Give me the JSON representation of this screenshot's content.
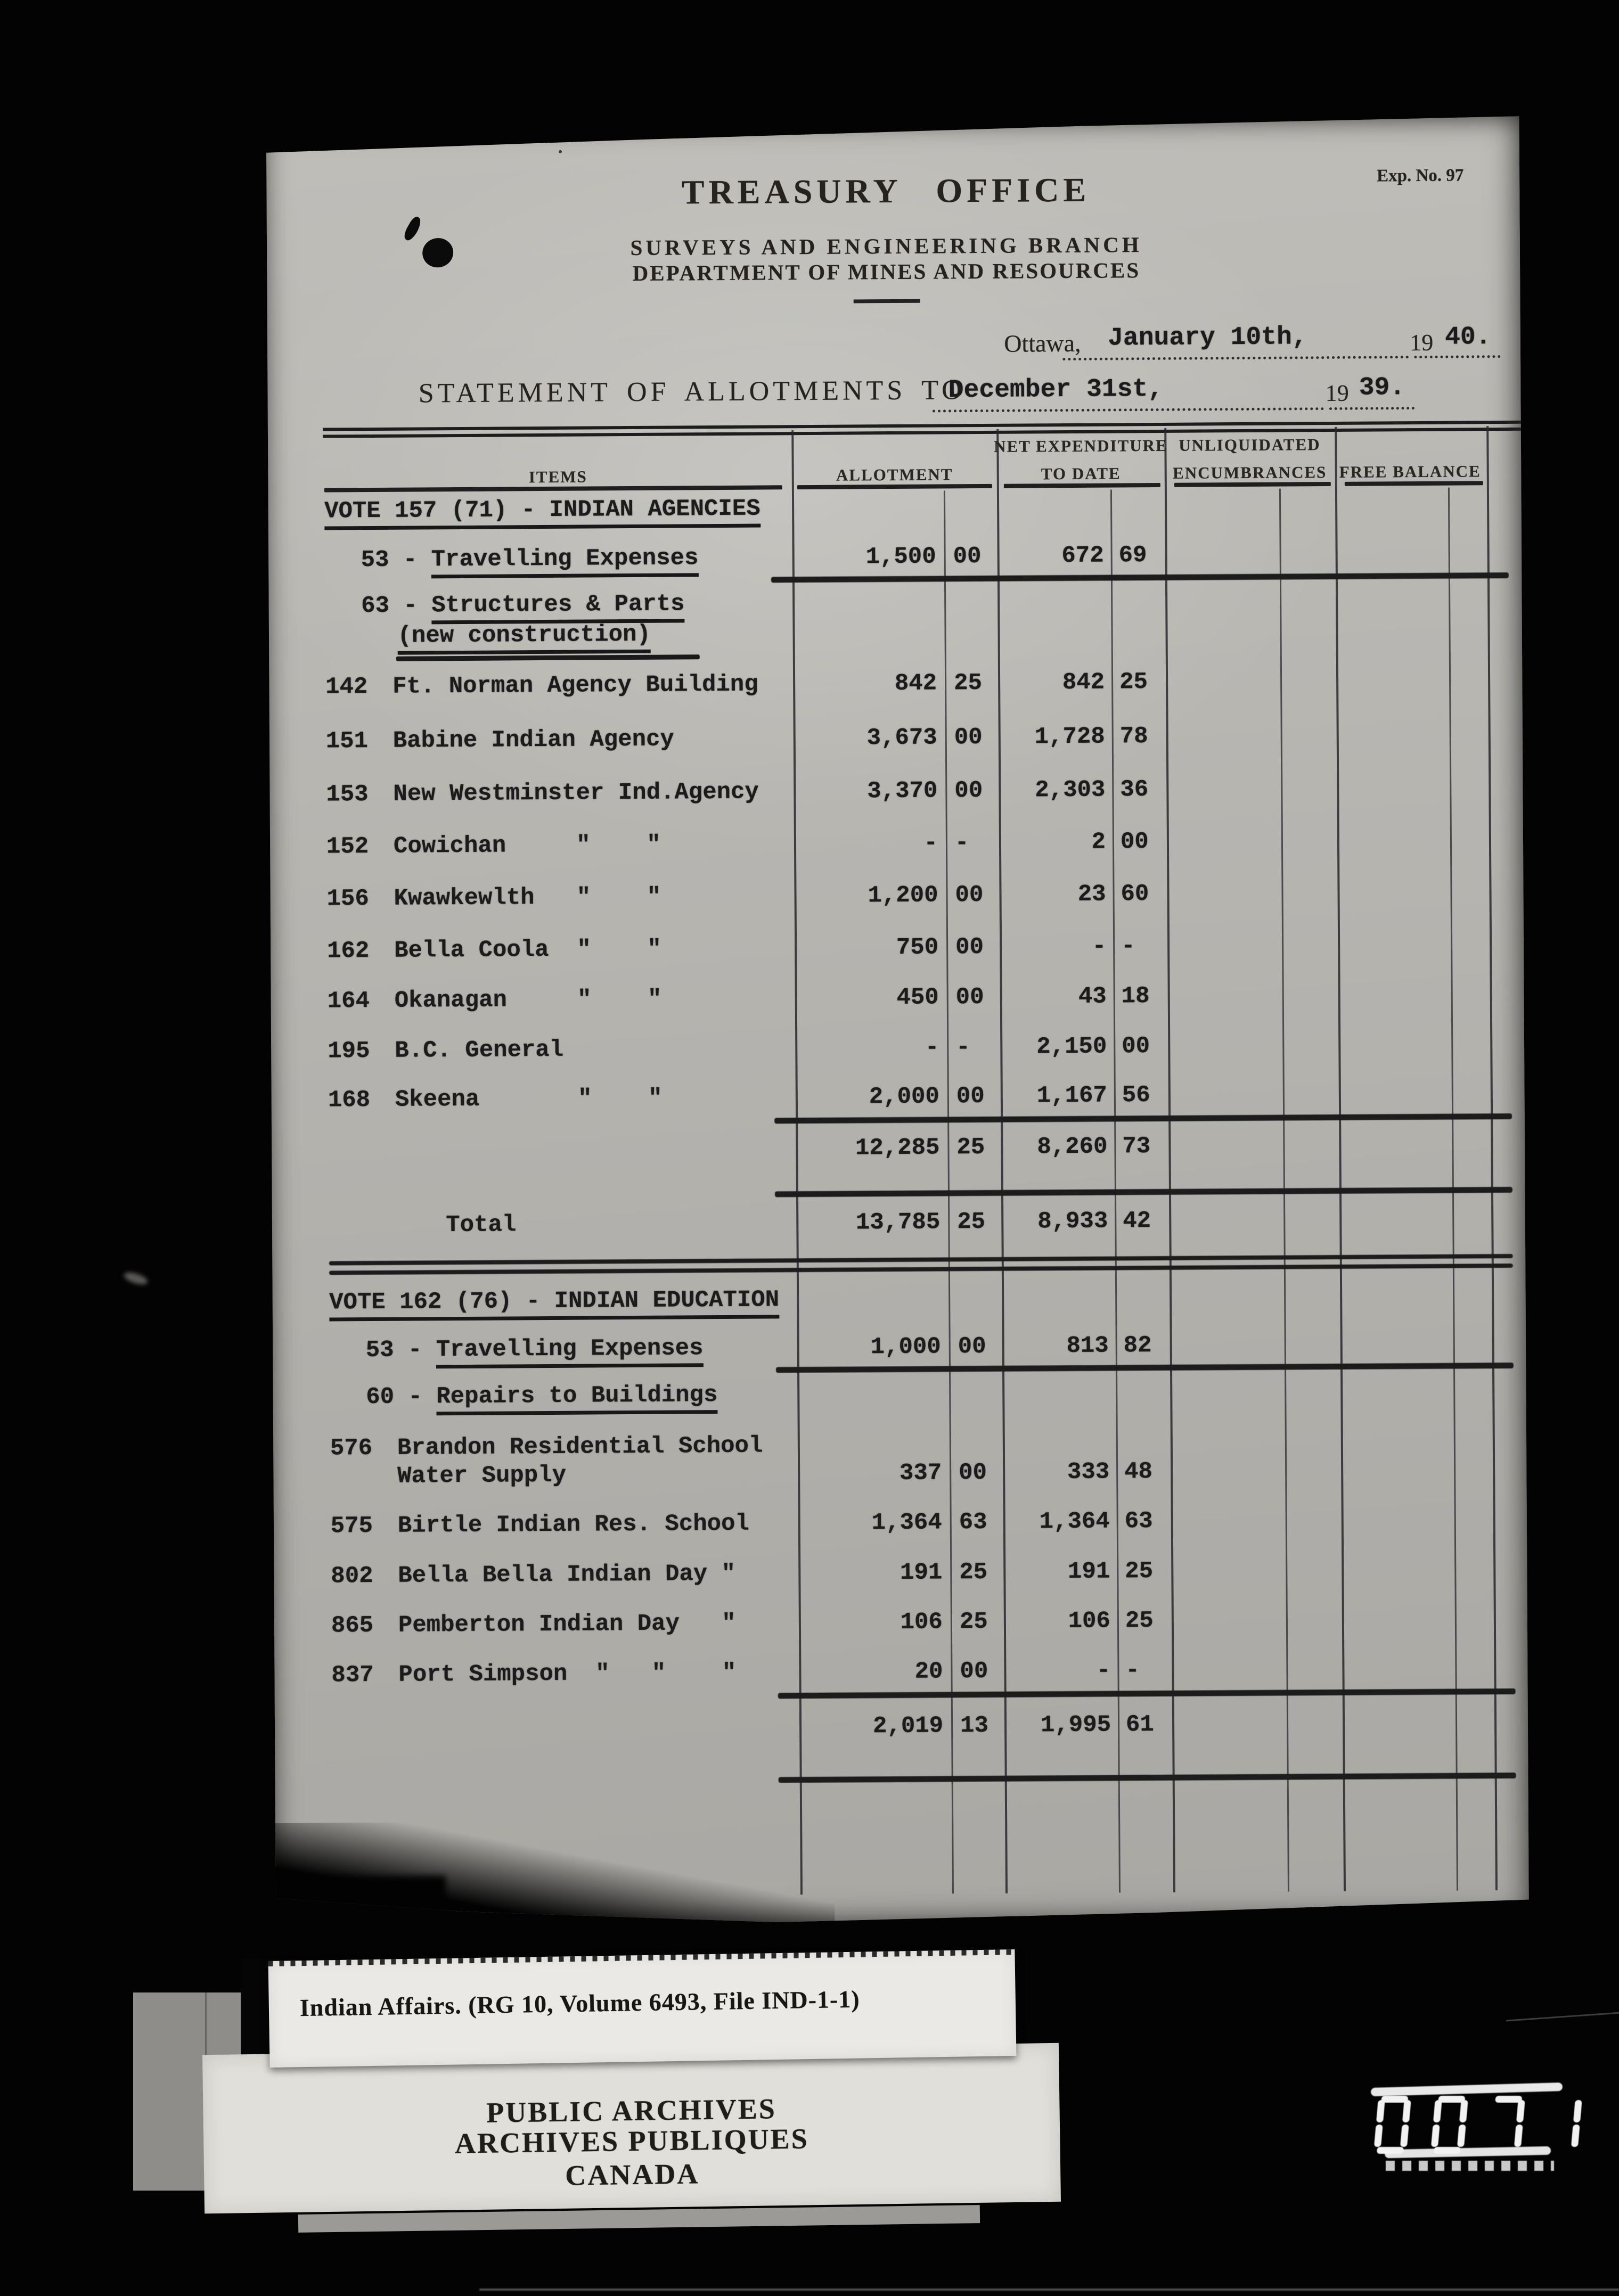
{
  "header": {
    "exp_no": "Exp. No. 97",
    "office": "TREASURY OFFICE",
    "branch": "SURVEYS AND ENGINEERING BRANCH",
    "department": "DEPARTMENT OF MINES AND RESOURCES",
    "place": "Ottawa,",
    "date_typed": "January 10th,",
    "year_printed": "19",
    "year_typed": "40.",
    "statement_label": "STATEMENT OF ALLOTMENTS TO",
    "statement_date_typed": "December 31st,",
    "statement_year_printed": "19",
    "statement_year_typed": "39."
  },
  "table": {
    "headers": [
      [
        "ITEMS"
      ],
      [
        "ALLOTMENT"
      ],
      [
        "NET EXPENDITURE",
        "TO DATE"
      ],
      [
        "UNLIQUIDATED",
        "ENCUMBRANCES"
      ],
      [
        "FREE BALANCE"
      ]
    ],
    "rows": [
      {
        "t": "vote",
        "text": "VOTE 157 (71) - INDIAN AGENCIES"
      },
      {
        "t": "sub",
        "prefix": "53 - ",
        "text": "Travelling Expenses",
        "allot": [
          "1,500",
          "00"
        ],
        "net": [
          "672",
          "69"
        ]
      },
      {
        "t": "rule"
      },
      {
        "t": "sub2",
        "prefix": "63 - ",
        "line1": "Structures & Parts",
        "line2": "(new construction)"
      },
      {
        "t": "item",
        "code": "142",
        "name": "Ft. Norman Agency Building",
        "allot": [
          "842",
          "25"
        ],
        "net": [
          "842",
          "25"
        ]
      },
      {
        "t": "item",
        "code": "151",
        "name": "Babine Indian Agency",
        "allot": [
          "3,673",
          "00"
        ],
        "net": [
          "1,728",
          "78"
        ]
      },
      {
        "t": "item",
        "code": "153",
        "name": "New Westminster Ind.Agency",
        "allot": [
          "3,370",
          "00"
        ],
        "net": [
          "2,303",
          "36"
        ]
      },
      {
        "t": "item",
        "code": "152",
        "name": "Cowichan     \"    \"",
        "allot": [
          "-",
          "-"
        ],
        "net": [
          "2",
          "00"
        ]
      },
      {
        "t": "item",
        "code": "156",
        "name": "Kwawkewlth   \"    \"",
        "allot": [
          "1,200",
          "00"
        ],
        "net": [
          "23",
          "60"
        ]
      },
      {
        "t": "item",
        "code": "162",
        "name": "Bella Coola  \"    \"",
        "allot": [
          "750",
          "00"
        ],
        "net": [
          "-",
          "-"
        ]
      },
      {
        "t": "item",
        "code": "164",
        "name": "Okanagan     \"    \"",
        "allot": [
          "450",
          "00"
        ],
        "net": [
          "43",
          "18"
        ]
      },
      {
        "t": "item",
        "code": "195",
        "name": "B.C. General",
        "allot": [
          "-",
          "-"
        ],
        "net": [
          "2,150",
          "00"
        ]
      },
      {
        "t": "item",
        "code": "168",
        "name": "Skeena       \"    \"",
        "allot": [
          "2,000",
          "00"
        ],
        "net": [
          "1,167",
          "56"
        ]
      },
      {
        "t": "rule"
      },
      {
        "t": "sum",
        "allot": [
          "12,285",
          "25"
        ],
        "net": [
          "8,260",
          "73"
        ]
      },
      {
        "t": "rule"
      },
      {
        "t": "total",
        "label": "Total",
        "allot": [
          "13,785",
          "25"
        ],
        "net": [
          "8,933",
          "42"
        ]
      },
      {
        "t": "drule"
      },
      {
        "t": "vote",
        "text": "VOTE 162 (76) - INDIAN EDUCATION"
      },
      {
        "t": "sub",
        "prefix": "53 - ",
        "text": "Travelling Expenses",
        "allot": [
          "1,000",
          "00"
        ],
        "net": [
          "813",
          "82"
        ]
      },
      {
        "t": "rule"
      },
      {
        "t": "subp",
        "prefix": "60 - ",
        "text": "Repairs to Buildings"
      },
      {
        "t": "item2",
        "code": "576",
        "line1": "Brandon Residential School",
        "line2": "Water Supply",
        "allot": [
          "337",
          "00"
        ],
        "net": [
          "333",
          "48"
        ]
      },
      {
        "t": "item",
        "code": "575",
        "name": "Birtle Indian Res. School",
        "allot": [
          "1,364",
          "63"
        ],
        "net": [
          "1,364",
          "63"
        ]
      },
      {
        "t": "item",
        "code": "802",
        "name": "Bella Bella Indian Day \"",
        "allot": [
          "191",
          "25"
        ],
        "net": [
          "191",
          "25"
        ]
      },
      {
        "t": "item",
        "code": "865",
        "name": "Pemberton Indian Day   \"",
        "allot": [
          "106",
          "25"
        ],
        "net": [
          "106",
          "25"
        ]
      },
      {
        "t": "item",
        "code": "837",
        "name": "Port Simpson  \"   \"    \"",
        "allot": [
          "20",
          "00"
        ],
        "net": [
          "-",
          "-"
        ]
      },
      {
        "t": "rule"
      },
      {
        "t": "sum",
        "allot": [
          "2,019",
          "13"
        ],
        "net": [
          "1,995",
          "61"
        ]
      },
      {
        "t": "rule"
      }
    ]
  },
  "footer": {
    "file_label": "Indian Affairs. (RG 10, Volume 6493, File IND-1-1)",
    "archives_lines": [
      "PUBLIC ARCHIVES",
      "ARCHIVES PUBLIQUES",
      "CANADA"
    ],
    "counter_digits": "0071"
  }
}
